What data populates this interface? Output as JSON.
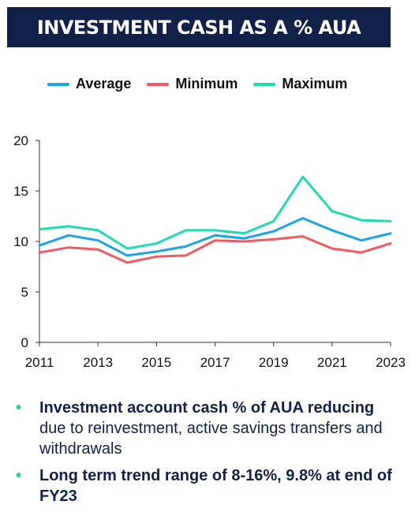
{
  "title": "INVESTMENT CASH AS A % AUA",
  "chart_data": {
    "type": "line",
    "x": [
      2011,
      2012,
      2013,
      2014,
      2015,
      2016,
      2017,
      2018,
      2019,
      2020,
      2021,
      2022,
      2023
    ],
    "x_tick_labels": [
      "2011",
      "2013",
      "2015",
      "2017",
      "2019",
      "2021",
      "2023"
    ],
    "y_tick_labels": [
      "0",
      "5",
      "10",
      "15",
      "20"
    ],
    "ylim": [
      0,
      20
    ],
    "grid": false,
    "legend_position": "top",
    "series": [
      {
        "name": "Average",
        "color": "#1aa3e8",
        "values": [
          9.6,
          10.6,
          10.1,
          8.6,
          9.0,
          9.5,
          10.6,
          10.3,
          11.0,
          12.3,
          11.1,
          10.1,
          10.8
        ]
      },
      {
        "name": "Minimum",
        "color": "#ef5a63",
        "values": [
          8.9,
          9.4,
          9.2,
          7.9,
          8.5,
          8.6,
          10.1,
          10.0,
          10.2,
          10.5,
          9.3,
          8.9,
          9.8
        ]
      },
      {
        "name": "Maximum",
        "color": "#1ddcaf",
        "values": [
          11.2,
          11.5,
          11.1,
          9.3,
          9.8,
          11.1,
          11.1,
          10.8,
          12.0,
          16.4,
          13.0,
          12.1,
          12.0
        ]
      }
    ]
  },
  "bullets": [
    {
      "bold": "Investment account cash % of AUA reducing",
      "rest": " due to reinvestment, active savings transfers and withdrawals"
    },
    {
      "bold": "Long term trend range of 8-16%, 9.8% at end of FY23",
      "rest": ""
    }
  ]
}
